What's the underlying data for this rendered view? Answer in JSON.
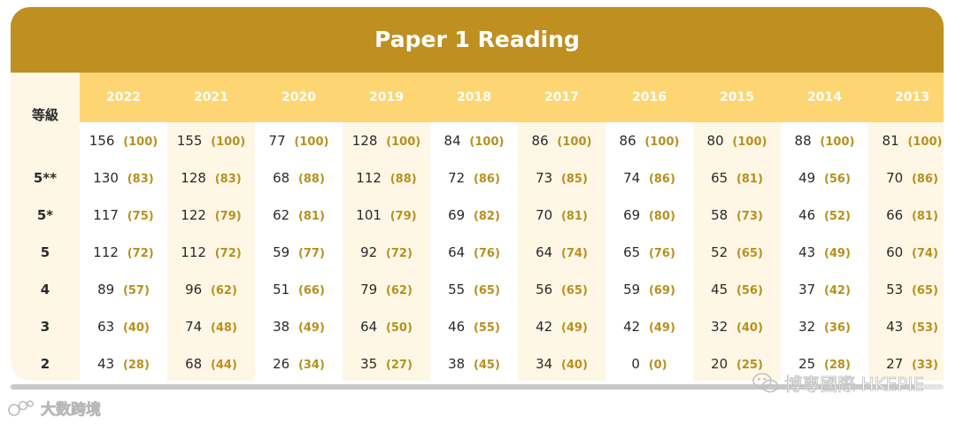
{
  "title": "Paper 1 Reading",
  "grade_header": "等級",
  "years": [
    "2022",
    "2021",
    "2020",
    "2019",
    "2018",
    "2017",
    "2016",
    "2015",
    "2014",
    "2013"
  ],
  "grades": [
    "",
    "5**",
    "5*",
    "5",
    "4",
    "3",
    "2"
  ],
  "rows": [
    [
      [
        "156",
        "(100)"
      ],
      [
        "155",
        "(100)"
      ],
      [
        "77",
        "(100)"
      ],
      [
        "128",
        "(100)"
      ],
      [
        "84",
        "(100)"
      ],
      [
        "86",
        "(100)"
      ],
      [
        "86",
        "(100)"
      ],
      [
        "80",
        "(100)"
      ],
      [
        "88",
        "(100)"
      ],
      [
        "81",
        "(100)"
      ]
    ],
    [
      [
        "130",
        "(83)"
      ],
      [
        "128",
        "(83)"
      ],
      [
        "68",
        "(88)"
      ],
      [
        "112",
        "(88)"
      ],
      [
        "72",
        "(86)"
      ],
      [
        "73",
        "(85)"
      ],
      [
        "74",
        "(86)"
      ],
      [
        "65",
        "(81)"
      ],
      [
        "49",
        "(56)"
      ],
      [
        "70",
        "(86)"
      ]
    ],
    [
      [
        "117",
        "(75)"
      ],
      [
        "122",
        "(79)"
      ],
      [
        "62",
        "(81)"
      ],
      [
        "101",
        "(79)"
      ],
      [
        "69",
        "(82)"
      ],
      [
        "70",
        "(81)"
      ],
      [
        "69",
        "(80)"
      ],
      [
        "58",
        "(73)"
      ],
      [
        "46",
        "(52)"
      ],
      [
        "66",
        "(81)"
      ]
    ],
    [
      [
        "112",
        "(72)"
      ],
      [
        "112",
        "(72)"
      ],
      [
        "59",
        "(77)"
      ],
      [
        "92",
        "(72)"
      ],
      [
        "64",
        "(76)"
      ],
      [
        "64",
        "(74)"
      ],
      [
        "65",
        "(76)"
      ],
      [
        "52",
        "(65)"
      ],
      [
        "43",
        "(49)"
      ],
      [
        "60",
        "(74)"
      ]
    ],
    [
      [
        "89",
        "(57)"
      ],
      [
        "96",
        "(62)"
      ],
      [
        "51",
        "(66)"
      ],
      [
        "79",
        "(62)"
      ],
      [
        "55",
        "(65)"
      ],
      [
        "56",
        "(65)"
      ],
      [
        "59",
        "(69)"
      ],
      [
        "45",
        "(56)"
      ],
      [
        "37",
        "(42)"
      ],
      [
        "53",
        "(65)"
      ]
    ],
    [
      [
        "63",
        "(40)"
      ],
      [
        "74",
        "(48)"
      ],
      [
        "38",
        "(49)"
      ],
      [
        "64",
        "(50)"
      ],
      [
        "46",
        "(55)"
      ],
      [
        "42",
        "(49)"
      ],
      [
        "42",
        "(49)"
      ],
      [
        "32",
        "(40)"
      ],
      [
        "32",
        "(36)"
      ],
      [
        "43",
        "(53)"
      ]
    ],
    [
      [
        "43",
        "(28)"
      ],
      [
        "68",
        "(44)"
      ],
      [
        "26",
        "(34)"
      ],
      [
        "35",
        "(27)"
      ],
      [
        "38",
        "(45)"
      ],
      [
        "34",
        "(40)"
      ],
      [
        "0",
        "(0)"
      ],
      [
        "20",
        "(25)"
      ],
      [
        "25",
        "(28)"
      ],
      [
        "27",
        "(33)"
      ]
    ]
  ],
  "watermark_left": "大数跨境",
  "watermark_right": "博專國際 HKEPIE",
  "scroll_fraction": 0.97,
  "colors": {
    "title_bar": "#bf9020",
    "header_band": "#fdd673",
    "card_bg": "#fef7e6",
    "pct_text": "#b8901d"
  },
  "icons": {
    "left_watermark": "bubble-logo-icon",
    "right_watermark": "wechat-icon"
  }
}
